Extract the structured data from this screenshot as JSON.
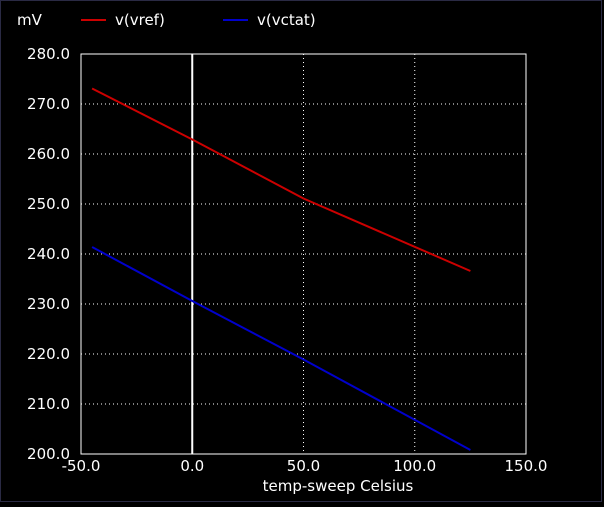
{
  "chart_data": {
    "type": "line",
    "unit_label": "mV",
    "xlabel": "temp-sweep  Celsius",
    "xlim": [
      -50,
      150
    ],
    "ylim": [
      200,
      280
    ],
    "x_ticks": [
      -50,
      0,
      50,
      100,
      150
    ],
    "x_tick_labels": [
      "-50.0",
      "0.0",
      "50.0",
      "100.0",
      "150.0"
    ],
    "y_ticks": [
      200,
      210,
      220,
      230,
      240,
      250,
      260,
      270,
      280
    ],
    "y_tick_labels": [
      "200.0",
      "210.0",
      "220.0",
      "230.0",
      "240.0",
      "250.0",
      "260.0",
      "270.0",
      "280.0"
    ],
    "x_zero_line": 0,
    "grid": true,
    "legend_position": "top",
    "series": [
      {
        "name": "v(vref)",
        "color": "#cc0000",
        "x": [
          -45,
          0,
          50,
          125
        ],
        "values": [
          273.1,
          262.9,
          251.1,
          236.6
        ]
      },
      {
        "name": "v(vctat)",
        "color": "#0000cc",
        "x": [
          -45,
          0,
          50,
          125
        ],
        "values": [
          241.4,
          230.6,
          218.9,
          200.8
        ]
      }
    ]
  }
}
